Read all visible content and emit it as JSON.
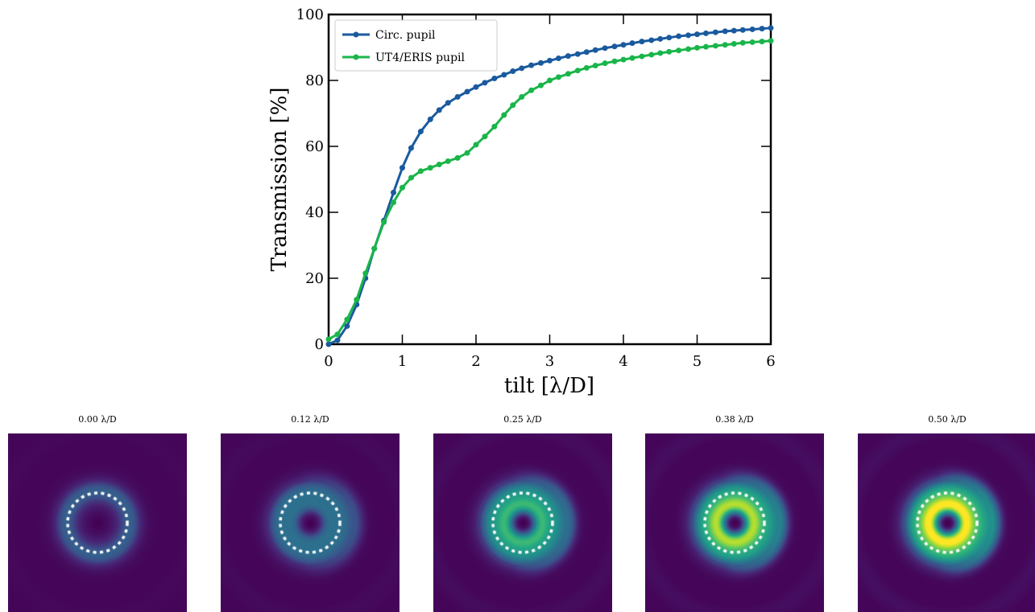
{
  "chart_data": [
    {
      "type": "line",
      "title": "",
      "xlabel": "tilt [λ/D]",
      "ylabel": "Transmission [%]",
      "xlim": [
        0,
        6
      ],
      "ylim": [
        0,
        100
      ],
      "xticks": [
        "0",
        "1",
        "2",
        "3",
        "4",
        "5",
        "6"
      ],
      "yticks": [
        "0",
        "20",
        "40",
        "60",
        "80",
        "100"
      ],
      "grid": false,
      "legend_position": "top-left",
      "x": [
        0,
        0.12,
        0.25,
        0.38,
        0.5,
        0.62,
        0.75,
        0.88,
        1.0,
        1.12,
        1.25,
        1.38,
        1.5,
        1.62,
        1.75,
        1.88,
        2.0,
        2.12,
        2.25,
        2.38,
        2.5,
        2.62,
        2.75,
        2.88,
        3.0,
        3.12,
        3.25,
        3.38,
        3.5,
        3.62,
        3.75,
        3.88,
        4.0,
        4.12,
        4.25,
        4.38,
        4.5,
        4.62,
        4.75,
        4.88,
        5.0,
        5.12,
        5.25,
        5.38,
        5.5,
        5.62,
        5.75,
        5.88,
        6.0
      ],
      "series": [
        {
          "name": "Circ. pupil",
          "color": "#1a5a9e",
          "values": [
            0.0,
            1.2,
            5.5,
            12.0,
            20.0,
            29.0,
            37.5,
            46.0,
            53.5,
            59.5,
            64.5,
            68.2,
            71.0,
            73.2,
            75.0,
            76.6,
            78.0,
            79.3,
            80.6,
            81.7,
            82.8,
            83.7,
            84.6,
            85.3,
            86.0,
            86.7,
            87.4,
            88.0,
            88.6,
            89.2,
            89.8,
            90.3,
            90.8,
            91.3,
            91.8,
            92.2,
            92.6,
            93.0,
            93.4,
            93.7,
            94.0,
            94.3,
            94.6,
            94.9,
            95.1,
            95.3,
            95.5,
            95.7,
            95.9
          ]
        },
        {
          "name": "UT4/ERIS pupil",
          "color": "#1ab54a",
          "values": [
            1.5,
            3.0,
            7.5,
            13.5,
            21.5,
            29.0,
            37.0,
            43.0,
            47.5,
            50.5,
            52.5,
            53.5,
            54.5,
            55.5,
            56.5,
            58.0,
            60.5,
            63.0,
            66.0,
            69.5,
            72.5,
            75.0,
            77.0,
            78.5,
            80.0,
            81.0,
            82.0,
            83.0,
            83.8,
            84.5,
            85.2,
            85.8,
            86.3,
            86.8,
            87.3,
            87.8,
            88.3,
            88.7,
            89.1,
            89.5,
            89.9,
            90.2,
            90.5,
            90.8,
            91.1,
            91.4,
            91.6,
            91.8,
            92.0
          ]
        }
      ]
    },
    {
      "type": "heatmap",
      "colormap": "viridis",
      "panels": [
        {
          "title": "0.00 λ/D",
          "ring_intensity": 0.28,
          "inner_intensity": 0.05,
          "asymmetry": 0.0,
          "fringe_strength": 0.15
        },
        {
          "title": "0.12 λ/D",
          "ring_intensity": 0.32,
          "inner_intensity": 0.3,
          "asymmetry": 0.35,
          "fringe_strength": 0.35
        },
        {
          "title": "0.25 λ/D",
          "ring_intensity": 0.45,
          "inner_intensity": 0.62,
          "asymmetry": 0.55,
          "fringe_strength": 0.55
        },
        {
          "title": "0.38 λ/D",
          "ring_intensity": 0.52,
          "inner_intensity": 0.85,
          "asymmetry": 0.7,
          "fringe_strength": 0.65
        },
        {
          "title": "0.50 λ/D",
          "ring_intensity": 0.58,
          "inner_intensity": 0.98,
          "asymmetry": 0.8,
          "fringe_strength": 0.75
        }
      ]
    }
  ]
}
